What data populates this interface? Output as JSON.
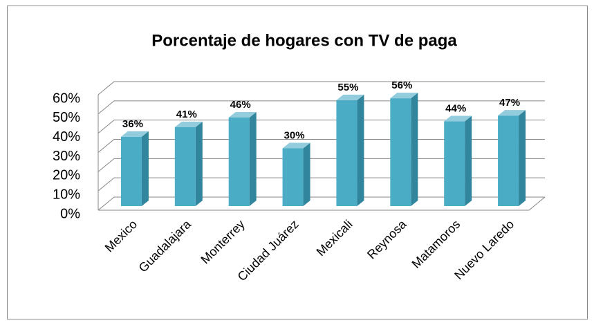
{
  "chart_data": {
    "type": "bar",
    "title": "Porcentaje de hogares con TV de paga",
    "categories": [
      "Mexico",
      "Guadalajara",
      "Monterrey",
      "Ciudad Juárez",
      "Mexicali",
      "Reynosa",
      "Matamoros",
      "Nuevo Laredo"
    ],
    "values": [
      36,
      41,
      46,
      30,
      55,
      56,
      44,
      47
    ],
    "value_labels": [
      "36%",
      "41%",
      "46%",
      "30%",
      "55%",
      "56%",
      "44%",
      "47%"
    ],
    "color": "#4bacc6",
    "ylim": [
      0,
      60
    ],
    "yticks": [
      {
        "value": 0,
        "label": "0%"
      },
      {
        "value": 10,
        "label": "10%"
      },
      {
        "value": 20,
        "label": "20%"
      },
      {
        "value": 30,
        "label": "30%"
      },
      {
        "value": 40,
        "label": "40%"
      },
      {
        "value": 50,
        "label": "50%"
      },
      {
        "value": 60,
        "label": "60%"
      }
    ],
    "grid": true
  }
}
